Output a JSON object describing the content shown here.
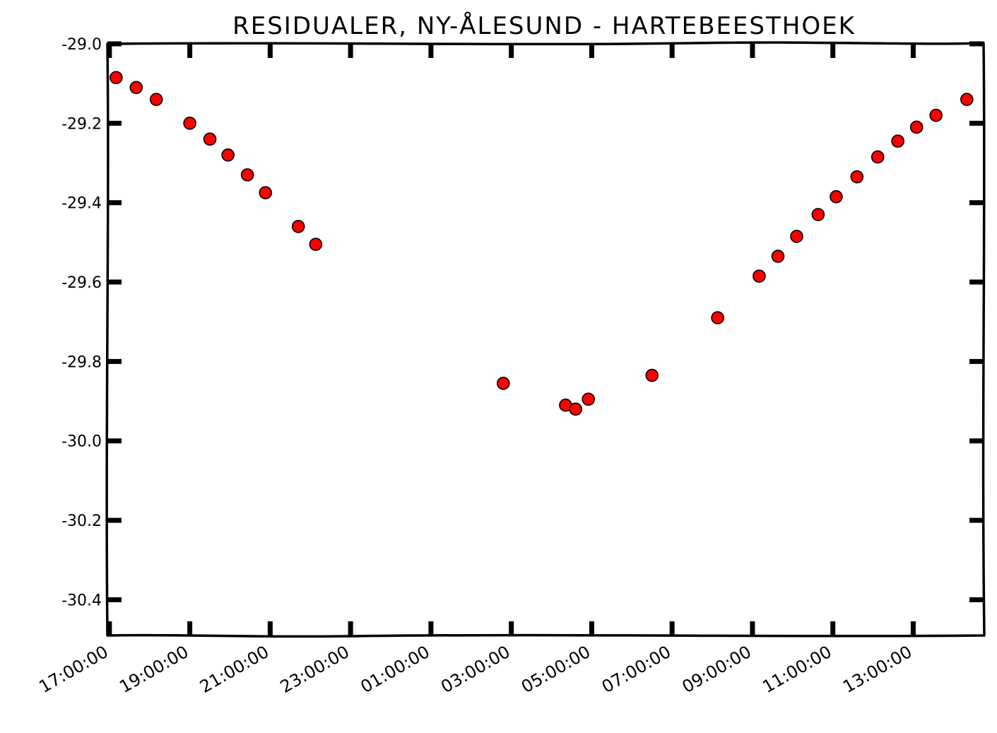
{
  "chart_data": {
    "type": "scatter",
    "title": "RESIDUALER, NY-ÅLESUND - HARTEBEESTHOEK",
    "xlabel": "",
    "ylabel": "",
    "x_ticks": [
      "17:00:00",
      "19:00:00",
      "21:00:00",
      "23:00:00",
      "01:00:00",
      "03:00:00",
      "05:00:00",
      "07:00:00",
      "09:00:00",
      "11:00:00",
      "13:00:00"
    ],
    "y_ticks": [
      "-29.0",
      "-29.2",
      "-29.4",
      "-29.6",
      "-29.8",
      "-30.0",
      "-30.2",
      "-30.4"
    ],
    "xlim": [
      "16:57",
      "14:45"
    ],
    "ylim": [
      -30.49,
      -29.0
    ],
    "marker_color": "#ff0000",
    "points": [
      {
        "x": "17:10",
        "y": -29.085
      },
      {
        "x": "17:40",
        "y": -29.11
      },
      {
        "x": "18:10",
        "y": -29.14
      },
      {
        "x": "19:00",
        "y": -29.2
      },
      {
        "x": "19:30",
        "y": -29.24
      },
      {
        "x": "19:57",
        "y": -29.28
      },
      {
        "x": "20:26",
        "y": -29.33
      },
      {
        "x": "20:53",
        "y": -29.375
      },
      {
        "x": "21:42",
        "y": -29.46
      },
      {
        "x": "22:08",
        "y": -29.505
      },
      {
        "x": "02:48",
        "y": -29.855
      },
      {
        "x": "04:21",
        "y": -29.91
      },
      {
        "x": "04:36",
        "y": -29.92
      },
      {
        "x": "04:55",
        "y": -29.895
      },
      {
        "x": "06:30",
        "y": -29.835
      },
      {
        "x": "08:08",
        "y": -29.69
      },
      {
        "x": "09:10",
        "y": -29.585
      },
      {
        "x": "09:38",
        "y": -29.535
      },
      {
        "x": "10:06",
        "y": -29.485
      },
      {
        "x": "10:38",
        "y": -29.43
      },
      {
        "x": "11:05",
        "y": -29.385
      },
      {
        "x": "11:36",
        "y": -29.335
      },
      {
        "x": "12:07",
        "y": -29.285
      },
      {
        "x": "12:37",
        "y": -29.245
      },
      {
        "x": "13:05",
        "y": -29.21
      },
      {
        "x": "13:34",
        "y": -29.18
      },
      {
        "x": "14:20",
        "y": -29.14
      }
    ]
  }
}
